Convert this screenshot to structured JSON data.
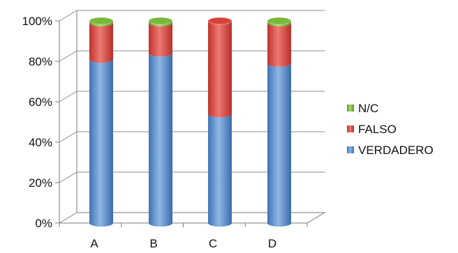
{
  "chart_data": {
    "type": "bar",
    "stacked": true,
    "percent": true,
    "categories": [
      "A",
      "B",
      "C",
      "D"
    ],
    "series": [
      {
        "name": "VERDADERO",
        "color": "#4f86c6",
        "values": [
          81,
          84,
          54,
          79
        ]
      },
      {
        "name": "FALSO",
        "color": "#d9423b",
        "values": [
          18,
          15,
          46,
          20
        ]
      },
      {
        "name": "N/C",
        "color": "#79b83a",
        "values": [
          1,
          1,
          0,
          1
        ]
      }
    ],
    "yticks": [
      "0%",
      "20%",
      "40%",
      "60%",
      "80%",
      "100%"
    ],
    "ylim": [
      0,
      100
    ],
    "grid": true,
    "legend": "right",
    "legend_order": [
      "N/C",
      "FALSO",
      "VERDADERO"
    ]
  }
}
